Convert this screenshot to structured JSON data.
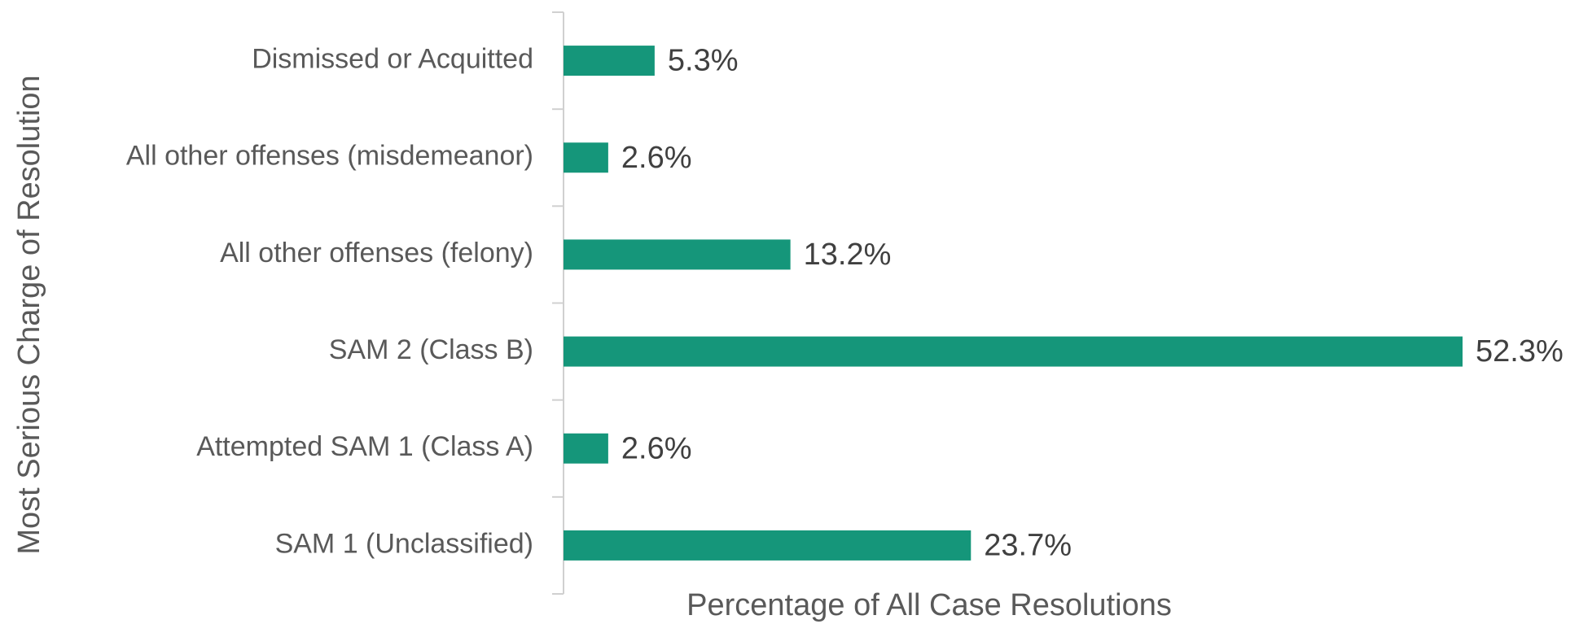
{
  "chart_data": {
    "type": "hbar",
    "x_label": "Percentage of All Case Resolutions",
    "y_label": "Most Serious Charge of Resolution",
    "categories": [
      "Dismissed or Acquitted",
      "All other offenses (misdemeanor)",
      "All other offenses (felony)",
      "SAM 2 (Class B)",
      "Attempted SAM 1 (Class A)",
      "SAM 1 (Unclassified)"
    ],
    "values": [
      5.3,
      2.6,
      13.2,
      52.3,
      2.6,
      23.7
    ],
    "value_labels": [
      "5.3%",
      "2.6%",
      "13.2%",
      "52.3%",
      "2.6%",
      "23.7%"
    ],
    "color": "#15967a",
    "xlim": [
      0,
      55
    ]
  }
}
